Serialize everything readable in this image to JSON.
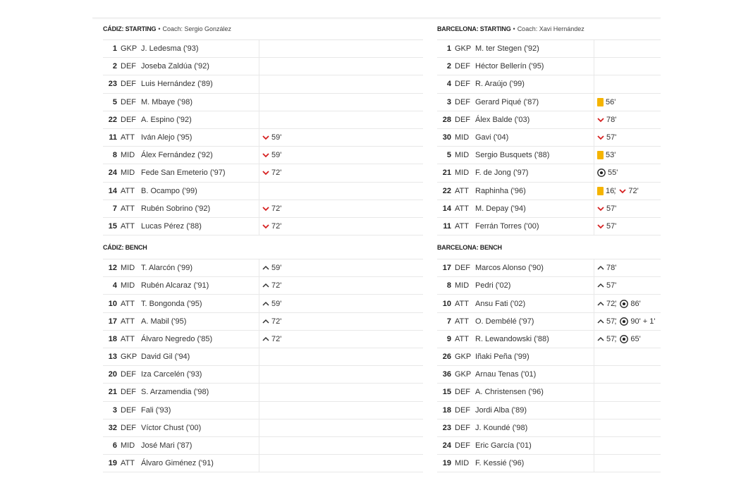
{
  "teams": [
    {
      "starting": {
        "title": "CÁDIZ: STARTING",
        "coach": "Coach: Sergio González",
        "players": [
          {
            "number": 1,
            "pos": "GKP",
            "name": "J. Ledesma ('93)",
            "events": []
          },
          {
            "number": 2,
            "pos": "DEF",
            "name": "Joseba Zaldúa ('92)",
            "events": []
          },
          {
            "number": 23,
            "pos": "DEF",
            "name": "Luis Hernández ('89)",
            "events": []
          },
          {
            "number": 5,
            "pos": "DEF",
            "name": "M. Mbaye ('98)",
            "events": []
          },
          {
            "number": 22,
            "pos": "DEF",
            "name": "A. Espino ('92)",
            "events": []
          },
          {
            "number": 11,
            "pos": "ATT",
            "name": "Iván Alejo ('95)",
            "events": [
              {
                "type": "sub-off",
                "minute": "59'"
              }
            ]
          },
          {
            "number": 8,
            "pos": "MID",
            "name": "Álex Fernández ('92)",
            "events": [
              {
                "type": "sub-off",
                "minute": "59'"
              }
            ]
          },
          {
            "number": 24,
            "pos": "MID",
            "name": "Fede San Emeterio ('97)",
            "events": [
              {
                "type": "sub-off",
                "minute": "72'"
              }
            ]
          },
          {
            "number": 14,
            "pos": "ATT",
            "name": "B. Ocampo ('99)",
            "events": []
          },
          {
            "number": 7,
            "pos": "ATT",
            "name": "Rubén Sobrino ('92)",
            "events": [
              {
                "type": "sub-off",
                "minute": "72'"
              }
            ]
          },
          {
            "number": 15,
            "pos": "ATT",
            "name": "Lucas Pérez ('88)",
            "events": [
              {
                "type": "sub-off",
                "minute": "72'"
              }
            ]
          }
        ]
      },
      "bench": {
        "title": "CÁDIZ: BENCH",
        "players": [
          {
            "number": 12,
            "pos": "MID",
            "name": "T. Alarcón ('99)",
            "events": [
              {
                "type": "sub-on",
                "minute": "59'"
              }
            ]
          },
          {
            "number": 4,
            "pos": "MID",
            "name": "Rubén Alcaraz ('91)",
            "events": [
              {
                "type": "sub-on",
                "minute": "72'"
              }
            ]
          },
          {
            "number": 10,
            "pos": "ATT",
            "name": "T. Bongonda ('95)",
            "events": [
              {
                "type": "sub-on",
                "minute": "59'"
              }
            ]
          },
          {
            "number": 17,
            "pos": "ATT",
            "name": "A. Mabil ('95)",
            "events": [
              {
                "type": "sub-on",
                "minute": "72'"
              }
            ]
          },
          {
            "number": 18,
            "pos": "ATT",
            "name": "Álvaro Negredo ('85)",
            "events": [
              {
                "type": "sub-on",
                "minute": "72'"
              }
            ]
          },
          {
            "number": 13,
            "pos": "GKP",
            "name": "David Gil ('94)",
            "events": []
          },
          {
            "number": 20,
            "pos": "DEF",
            "name": "Iza Carcelén ('93)",
            "events": []
          },
          {
            "number": 21,
            "pos": "DEF",
            "name": "S. Arzamendia ('98)",
            "events": []
          },
          {
            "number": 3,
            "pos": "DEF",
            "name": "Fali ('93)",
            "events": []
          },
          {
            "number": 32,
            "pos": "DEF",
            "name": "Víctor Chust ('00)",
            "events": []
          },
          {
            "number": 6,
            "pos": "MID",
            "name": "José Mari ('87)",
            "events": []
          },
          {
            "number": 19,
            "pos": "ATT",
            "name": "Álvaro Giménez ('91)",
            "events": []
          }
        ]
      }
    },
    {
      "starting": {
        "title": "BARCELONA: STARTING",
        "coach": "Coach: Xavi Hernández",
        "players": [
          {
            "number": 1,
            "pos": "GKP",
            "name": "M. ter Stegen ('92)",
            "events": []
          },
          {
            "number": 2,
            "pos": "DEF",
            "name": "Héctor Bellerín ('95)",
            "events": []
          },
          {
            "number": 4,
            "pos": "DEF",
            "name": "R. Araújo ('99)",
            "events": []
          },
          {
            "number": 3,
            "pos": "DEF",
            "name": "Gerard Piqué ('87)",
            "events": [
              {
                "type": "yellow",
                "minute": "56'"
              }
            ]
          },
          {
            "number": 28,
            "pos": "DEF",
            "name": "Álex Balde ('03)",
            "events": [
              {
                "type": "sub-off",
                "minute": "78'"
              }
            ]
          },
          {
            "number": 30,
            "pos": "MID",
            "name": "Gavi ('04)",
            "events": [
              {
                "type": "sub-off",
                "minute": "57'"
              }
            ]
          },
          {
            "number": 5,
            "pos": "MID",
            "name": "Sergio Busquets ('88)",
            "events": [
              {
                "type": "yellow",
                "minute": "53'"
              }
            ]
          },
          {
            "number": 21,
            "pos": "MID",
            "name": "F. de Jong ('97)",
            "events": [
              {
                "type": "goal",
                "minute": "55'"
              }
            ]
          },
          {
            "number": 22,
            "pos": "ATT",
            "name": "Raphinha ('96)",
            "events": [
              {
                "type": "yellow",
                "minute": "16'"
              },
              {
                "type": "sub-off",
                "minute": "72'"
              }
            ]
          },
          {
            "number": 14,
            "pos": "ATT",
            "name": "M. Depay ('94)",
            "events": [
              {
                "type": "sub-off",
                "minute": "57'"
              }
            ]
          },
          {
            "number": 11,
            "pos": "ATT",
            "name": "Ferrán Torres ('00)",
            "events": [
              {
                "type": "sub-off",
                "minute": "57'"
              }
            ]
          }
        ]
      },
      "bench": {
        "title": "BARCELONA: BENCH",
        "players": [
          {
            "number": 17,
            "pos": "DEF",
            "name": "Marcos Alonso ('90)",
            "events": [
              {
                "type": "sub-on",
                "minute": "78'"
              }
            ]
          },
          {
            "number": 8,
            "pos": "MID",
            "name": "Pedri ('02)",
            "events": [
              {
                "type": "sub-on",
                "minute": "57'"
              }
            ]
          },
          {
            "number": 10,
            "pos": "ATT",
            "name": "Ansu Fati ('02)",
            "events": [
              {
                "type": "sub-on",
                "minute": "72'"
              },
              {
                "type": "goal",
                "minute": "86'"
              }
            ]
          },
          {
            "number": 7,
            "pos": "ATT",
            "name": "O. Dembélé ('97)",
            "events": [
              {
                "type": "sub-on",
                "minute": "57'"
              },
              {
                "type": "goal",
                "minute": "90' + 1'"
              }
            ]
          },
          {
            "number": 9,
            "pos": "ATT",
            "name": "R. Lewandowski ('88)",
            "events": [
              {
                "type": "sub-on",
                "minute": "57'"
              },
              {
                "type": "goal",
                "minute": "65'"
              }
            ]
          },
          {
            "number": 26,
            "pos": "GKP",
            "name": "Iñaki Peña ('99)",
            "events": []
          },
          {
            "number": 36,
            "pos": "GKP",
            "name": "Arnau Tenas ('01)",
            "events": []
          },
          {
            "number": 15,
            "pos": "DEF",
            "name": "A. Christensen ('96)",
            "events": []
          },
          {
            "number": 18,
            "pos": "DEF",
            "name": "Jordi Alba ('89)",
            "events": []
          },
          {
            "number": 23,
            "pos": "DEF",
            "name": "J. Koundé ('98)",
            "events": []
          },
          {
            "number": 24,
            "pos": "DEF",
            "name": "Eric García ('01)",
            "events": []
          },
          {
            "number": 19,
            "pos": "MID",
            "name": "F. Kessié ('96)",
            "events": []
          }
        ]
      }
    }
  ]
}
